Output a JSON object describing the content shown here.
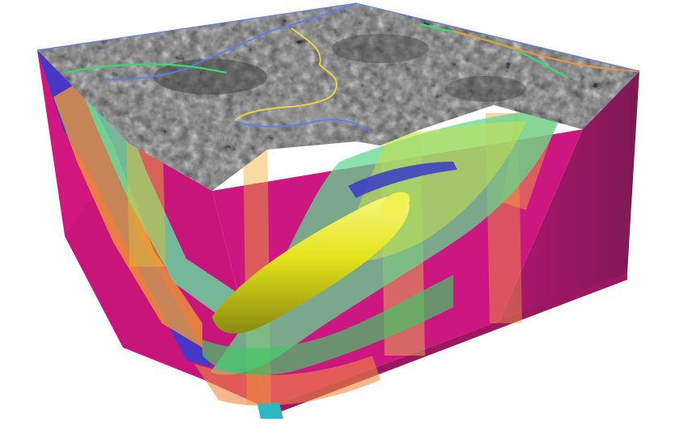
{
  "scene": {
    "subject": "3d-geological-block-model",
    "colors": {
      "background": "#ffffff",
      "side_magenta": "#d0157f",
      "side_magenta_dark": "#8c1a55",
      "surface_gray": "#6f6f6f",
      "layer_blue": "#3a3ac8",
      "layer_green": "#5fe0a0",
      "layer_yellow": "#e8e820",
      "layer_orange": "#f0a030",
      "layer_cyan": "#30b0c0"
    },
    "surface_lines": [
      {
        "name": "yellow-line",
        "color": "#e8d440"
      },
      {
        "name": "blue-line",
        "color": "#5a7cff"
      },
      {
        "name": "green-line",
        "color": "#38d870"
      },
      {
        "name": "orange-line",
        "color": "#f09040"
      }
    ]
  }
}
